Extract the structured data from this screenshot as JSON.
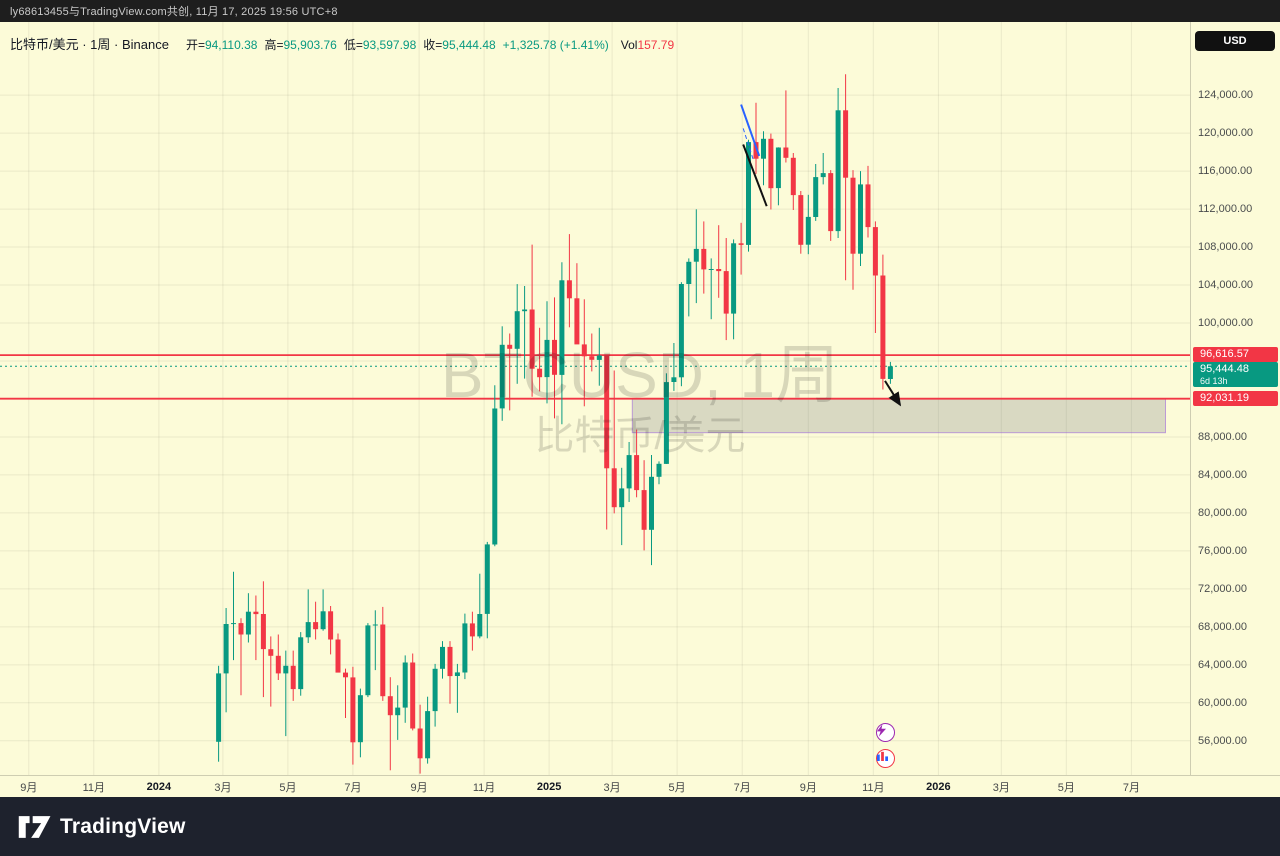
{
  "topbar": {
    "attribution": "ly68613455与TradingView.com共创, 11月 17, 2025 19:56 UTC+8"
  },
  "legend": {
    "symbol_title": "比特币/美元 · 1周 · Binance",
    "open_label": "开=",
    "open": "94,110.38",
    "high_label": "高=",
    "high": "95,903.76",
    "low_label": "低=",
    "low": "93,597.98",
    "close_label": "收=",
    "close": "95,444.48",
    "change": "+1,325.78 (+1.41%)",
    "vol_label": "Vol",
    "vol": "157.79"
  },
  "watermark": {
    "line1": "BTCUSD, 1周",
    "line2": "比特币/美元"
  },
  "price_axis": {
    "currency_button": "USD",
    "badges": [
      {
        "type": "line",
        "label": "96,616.57",
        "value": 96616.57,
        "color": "#F23645"
      },
      {
        "type": "last",
        "label": "95,444.48",
        "sub": "6d 13h",
        "value": 95444.48,
        "color": "#089981"
      },
      {
        "type": "line",
        "label": "92,031.19",
        "value": 92031.19,
        "color": "#F23645"
      }
    ]
  },
  "time_axis": {
    "ticks": [
      {
        "label": "9月",
        "date": "2023-09-01",
        "bold": false
      },
      {
        "label": "11月",
        "date": "2023-11-01",
        "bold": false
      },
      {
        "label": "2024",
        "date": "2024-01-01",
        "bold": true
      },
      {
        "label": "3月",
        "date": "2024-03-01",
        "bold": false
      },
      {
        "label": "5月",
        "date": "2024-05-01",
        "bold": false
      },
      {
        "label": "7月",
        "date": "2024-07-01",
        "bold": false
      },
      {
        "label": "9月",
        "date": "2024-09-01",
        "bold": false
      },
      {
        "label": "11月",
        "date": "2024-11-01",
        "bold": false
      },
      {
        "label": "2025",
        "date": "2025-01-01",
        "bold": true
      },
      {
        "label": "3月",
        "date": "2025-03-01",
        "bold": false
      },
      {
        "label": "5月",
        "date": "2025-05-01",
        "bold": false
      },
      {
        "label": "7月",
        "date": "2025-07-01",
        "bold": false
      },
      {
        "label": "9月",
        "date": "2025-09-01",
        "bold": false
      },
      {
        "label": "11月",
        "date": "2025-11-01",
        "bold": false
      },
      {
        "label": "2026",
        "date": "2026-01-01",
        "bold": true
      },
      {
        "label": "3月",
        "date": "2026-03-01",
        "bold": false
      },
      {
        "label": "5月",
        "date": "2026-05-01",
        "bold": false
      },
      {
        "label": "7月",
        "date": "2026-07-01",
        "bold": false
      }
    ]
  },
  "bottombar": {
    "brand": "TradingView"
  },
  "chart_data": {
    "type": "candlestick",
    "symbol": "BTCUSD",
    "interval": "1周",
    "exchange": "Binance",
    "up_color": "#089981",
    "down_color": "#F23645",
    "background": "#FCFBD8",
    "grid": true,
    "ylim": [
      52400,
      131700
    ],
    "xlim": [
      "2023-08-05",
      "2026-08-25"
    ],
    "price_ticks": [
      56000,
      60000,
      64000,
      68000,
      72000,
      76000,
      80000,
      84000,
      88000,
      92000,
      96000,
      100000,
      104000,
      108000,
      112000,
      116000,
      120000,
      124000
    ],
    "hlines": [
      {
        "value": 96616.57,
        "color": "#F23645"
      },
      {
        "value": 92031.19,
        "color": "#F23645"
      }
    ],
    "last_price_line": {
      "value": 95444.48,
      "color": "#089981"
    },
    "zone": {
      "date_start": "2025-03-20",
      "date_end": "2026-08-02",
      "price_top": 92031.19,
      "price_bottom": 88450,
      "fill": "rgba(125,128,138,0.28)",
      "border": "rgba(156,100,220,0.6)"
    },
    "drawings": [
      {
        "name": "trend-line-blue",
        "color": "#2962FF",
        "width": 2,
        "dash": false,
        "arrow": false,
        "points": [
          {
            "date": "2025-06-30",
            "price": 123000
          },
          {
            "date": "2025-07-17",
            "price": 117600
          }
        ]
      },
      {
        "name": "trend-line-blue-dashed",
        "color": "#2962FF",
        "width": 1,
        "dash": true,
        "arrow": false,
        "points": [
          {
            "date": "2025-07-02",
            "price": 120500
          },
          {
            "date": "2025-07-12",
            "price": 117000
          }
        ]
      },
      {
        "name": "trend-line-black",
        "color": "#111111",
        "width": 2,
        "dash": false,
        "arrow": false,
        "points": [
          {
            "date": "2025-07-02",
            "price": 118800
          },
          {
            "date": "2025-07-24",
            "price": 112300
          }
        ]
      },
      {
        "name": "arrow-black",
        "color": "#111111",
        "width": 2,
        "dash": false,
        "arrow": true,
        "points": [
          {
            "date": "2025-11-12",
            "price": 93900
          },
          {
            "date": "2025-11-26",
            "price": 91400
          }
        ]
      }
    ],
    "candles_format": [
      "date",
      "open",
      "high",
      "low",
      "close"
    ],
    "candles": [
      [
        "2024-02-26",
        55900,
        63900,
        53800,
        63100
      ],
      [
        "2024-03-04",
        63100,
        69990,
        59000,
        68300
      ],
      [
        "2024-03-11",
        68300,
        73800,
        64500,
        68400
      ],
      [
        "2024-03-18",
        68400,
        68900,
        60800,
        67200
      ],
      [
        "2024-03-25",
        67200,
        71550,
        66350,
        69600
      ],
      [
        "2024-04-01",
        69600,
        71300,
        64500,
        69350
      ],
      [
        "2024-04-08",
        69350,
        72800,
        60600,
        65650
      ],
      [
        "2024-04-15",
        65650,
        67000,
        59600,
        64950
      ],
      [
        "2024-04-22",
        64950,
        67200,
        62400,
        63100
      ],
      [
        "2024-04-29",
        63100,
        65500,
        56500,
        63900
      ],
      [
        "2024-05-06",
        63900,
        65500,
        60200,
        61450
      ],
      [
        "2024-05-13",
        61450,
        67450,
        60750,
        66900
      ],
      [
        "2024-05-20",
        66900,
        71950,
        66300,
        68500
      ],
      [
        "2024-05-27",
        68500,
        70650,
        66670,
        67750
      ],
      [
        "2024-06-03",
        67750,
        71950,
        67600,
        69640
      ],
      [
        "2024-06-10",
        69640,
        70200,
        65100,
        66670
      ],
      [
        "2024-06-17",
        66670,
        67300,
        63400,
        63180
      ],
      [
        "2024-06-24",
        63180,
        63600,
        58400,
        62680
      ],
      [
        "2024-07-01",
        62680,
        63800,
        53500,
        55850
      ],
      [
        "2024-07-08",
        55850,
        61500,
        54260,
        60800
      ],
      [
        "2024-07-15",
        60800,
        68400,
        60600,
        68150
      ],
      [
        "2024-07-22",
        68150,
        69750,
        63450,
        68250
      ],
      [
        "2024-07-29",
        68250,
        70100,
        60200,
        60700
      ],
      [
        "2024-08-05",
        60700,
        62700,
        52900,
        58700
      ],
      [
        "2024-08-12",
        58700,
        61850,
        56100,
        59500
      ],
      [
        "2024-08-19",
        59500,
        65000,
        57900,
        64250
      ],
      [
        "2024-08-26",
        64250,
        65200,
        57100,
        57300
      ],
      [
        "2024-09-02",
        57300,
        59800,
        52550,
        54160
      ],
      [
        "2024-09-09",
        54160,
        60650,
        53600,
        59130
      ],
      [
        "2024-09-16",
        59130,
        64100,
        57500,
        63580
      ],
      [
        "2024-09-23",
        63580,
        66500,
        62550,
        65890
      ],
      [
        "2024-09-30",
        65890,
        66500,
        59900,
        62820
      ],
      [
        "2024-10-07",
        62820,
        64100,
        58950,
        63200
      ],
      [
        "2024-10-14",
        63200,
        69400,
        62500,
        68370
      ],
      [
        "2024-10-21",
        68370,
        69600,
        65500,
        67000
      ],
      [
        "2024-10-28",
        67000,
        73600,
        66800,
        69360
      ],
      [
        "2024-11-04",
        69360,
        76950,
        66800,
        76680
      ],
      [
        "2024-11-11",
        76680,
        93450,
        76500,
        91000
      ],
      [
        "2024-11-18",
        91000,
        99650,
        89700,
        97700
      ],
      [
        "2024-11-25",
        97700,
        98900,
        90800,
        97280
      ],
      [
        "2024-12-02",
        97280,
        104100,
        93600,
        101240
      ],
      [
        "2024-12-09",
        101240,
        103900,
        94150,
        101420
      ],
      [
        "2024-12-16",
        101420,
        108260,
        92240,
        95190
      ],
      [
        "2024-12-23",
        95190,
        99500,
        92800,
        94300
      ],
      [
        "2024-12-30",
        94300,
        102300,
        91530,
        98220
      ],
      [
        "2025-01-06",
        98220,
        102700,
        89950,
        94540
      ],
      [
        "2025-01-13",
        94540,
        106400,
        89340,
        104500
      ],
      [
        "2025-01-20",
        104500,
        109360,
        99550,
        102600
      ],
      [
        "2025-01-27",
        102600,
        106300,
        97800,
        97750
      ],
      [
        "2025-02-03",
        97750,
        102500,
        91230,
        96500
      ],
      [
        "2025-02-10",
        96500,
        98900,
        94900,
        96120
      ],
      [
        "2025-02-17",
        96120,
        99500,
        93400,
        96580
      ],
      [
        "2025-02-24",
        96580,
        96670,
        78250,
        84700
      ],
      [
        "2025-03-03",
        84700,
        95000,
        79950,
        80600
      ],
      [
        "2025-03-10",
        80600,
        84750,
        76610,
        82580
      ],
      [
        "2025-03-17",
        82580,
        87470,
        81150,
        86090
      ],
      [
        "2025-03-24",
        86090,
        88770,
        81640,
        82400
      ],
      [
        "2025-03-31",
        82400,
        85550,
        76050,
        78220
      ],
      [
        "2025-04-07",
        78220,
        86100,
        74510,
        83800
      ],
      [
        "2025-04-14",
        83800,
        85430,
        83030,
        85170
      ],
      [
        "2025-04-21",
        85170,
        94700,
        85150,
        93780
      ],
      [
        "2025-04-28",
        93780,
        97900,
        92850,
        94280
      ],
      [
        "2025-05-05",
        94280,
        104300,
        93350,
        104110
      ],
      [
        "2025-05-12",
        104110,
        106800,
        100700,
        106450
      ],
      [
        "2025-05-19",
        106450,
        111970,
        102100,
        107800
      ],
      [
        "2025-05-26",
        107800,
        110700,
        103100,
        105640
      ],
      [
        "2025-06-02",
        105640,
        106800,
        100400,
        105690
      ],
      [
        "2025-06-09",
        105690,
        110300,
        102660,
        105470
      ],
      [
        "2025-06-16",
        105470,
        108950,
        98200,
        100990
      ],
      [
        "2025-06-23",
        100990,
        108800,
        98280,
        108390
      ],
      [
        "2025-06-30",
        108390,
        110550,
        105100,
        108220
      ],
      [
        "2025-07-07",
        108220,
        119300,
        107520,
        119050
      ],
      [
        "2025-07-14",
        119050,
        123200,
        115700,
        117300
      ],
      [
        "2025-07-21",
        117300,
        120200,
        114500,
        119400
      ],
      [
        "2025-07-28",
        119400,
        119950,
        111950,
        114200
      ],
      [
        "2025-08-04",
        114200,
        118500,
        112400,
        118480
      ],
      [
        "2025-08-11",
        118480,
        124500,
        116900,
        117400
      ],
      [
        "2025-08-18",
        117400,
        117900,
        111900,
        113470
      ],
      [
        "2025-08-25",
        113470,
        113900,
        107300,
        108240
      ],
      [
        "2025-09-01",
        108240,
        113500,
        107250,
        111170
      ],
      [
        "2025-09-08",
        111170,
        116750,
        110750,
        115370
      ],
      [
        "2025-09-15",
        115370,
        117900,
        114600,
        115790
      ],
      [
        "2025-09-22",
        115790,
        116100,
        108650,
        109680
      ],
      [
        "2025-09-29",
        109680,
        124750,
        108950,
        122400
      ],
      [
        "2025-10-06",
        122400,
        126200,
        104500,
        115300
      ],
      [
        "2025-10-13",
        115300,
        116100,
        103500,
        107300
      ],
      [
        "2025-10-20",
        107300,
        116000,
        106000,
        114600
      ],
      [
        "2025-10-27",
        114600,
        116550,
        109000,
        110100
      ],
      [
        "2025-11-03",
        110100,
        110700,
        98950,
        105000
      ],
      [
        "2025-11-10",
        105000,
        107200,
        93000,
        94110
      ],
      [
        "2025-11-17",
        94110.38,
        95903.76,
        93597.98,
        95444.48
      ]
    ]
  }
}
